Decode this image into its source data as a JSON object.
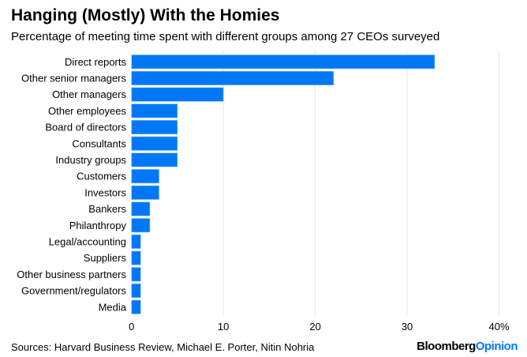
{
  "chart_data": {
    "type": "bar",
    "orientation": "horizontal",
    "title": "Hanging (Mostly) With the Homies",
    "subtitle": "Percentage of meeting time spent with different groups among 27 CEOs surveyed",
    "categories": [
      "Direct reports",
      "Other senior managers",
      "Other managers",
      "Other employees",
      "Board of directors",
      "Consultants",
      "Industry groups",
      "Customers",
      "Investors",
      "Bankers",
      "Philanthropy",
      "Legal/accounting",
      "Suppliers",
      "Other business partners",
      "Government/regulators",
      "Media"
    ],
    "values": [
      33,
      22,
      10,
      5,
      5,
      5,
      5,
      3,
      3,
      2,
      2,
      1,
      1,
      1,
      1,
      1
    ],
    "xlim": [
      0,
      40
    ],
    "xticks": [
      "0",
      "10",
      "20",
      "30",
      "40%"
    ],
    "grid": true,
    "bar_color": "#0078f5",
    "xlabel": "",
    "ylabel": ""
  },
  "footer": {
    "source": "Sources: Harvard Business Review, Michael E. Porter, Nitin Nohria",
    "logo_a": "Bloomberg",
    "logo_b": "Opinion"
  }
}
